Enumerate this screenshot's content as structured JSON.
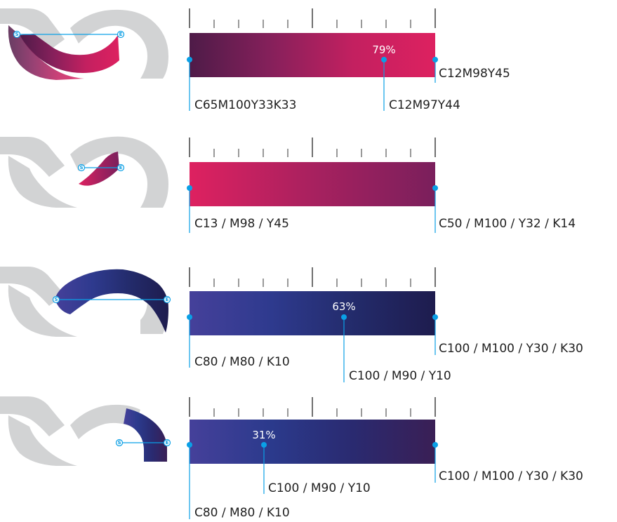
{
  "colors": {
    "marker": "#0aa0e6",
    "ruler": "#333333",
    "shape_gray": "#d2d3d4"
  },
  "markers": {
    "start": "S",
    "end": "E"
  },
  "rows": [
    {
      "id": "row1",
      "gradient": [
        "#4e1b48",
        "#86205b",
        "#c32060",
        "#dd2160"
      ],
      "mid_label": "79%",
      "mid_fraction": 0.79,
      "start_color": "C65M100Y33K33",
      "mid_color": "C12M97Y44",
      "end_color": "C12M98Y45"
    },
    {
      "id": "row2",
      "gradient": [
        "#de2160",
        "#a8215f",
        "#7a1f5c"
      ],
      "start_color": "C13 / M98 / Y45",
      "end_color": "C50 / M100 / Y32 / K14"
    },
    {
      "id": "row3",
      "gradient": [
        "#45409a",
        "#2e3a8e",
        "#232b6b",
        "#1e1c4e"
      ],
      "mid_label": "63%",
      "mid_fraction": 0.63,
      "start_color": "C80 / M80 / K10",
      "mid_color": "C100 / M90 / Y10",
      "end_color": "C100 / M100 / Y30 / K30"
    },
    {
      "id": "row4",
      "gradient": [
        "#45409a",
        "#2b3a8c",
        "#2a2a70",
        "#3a1f55"
      ],
      "mid_label": "31%",
      "mid_fraction": 0.31,
      "start_color": "C80 / M80 / K10",
      "mid_color": "C100 / M90 / Y10",
      "end_color": "C100 / M100 / Y30 / K30"
    }
  ]
}
